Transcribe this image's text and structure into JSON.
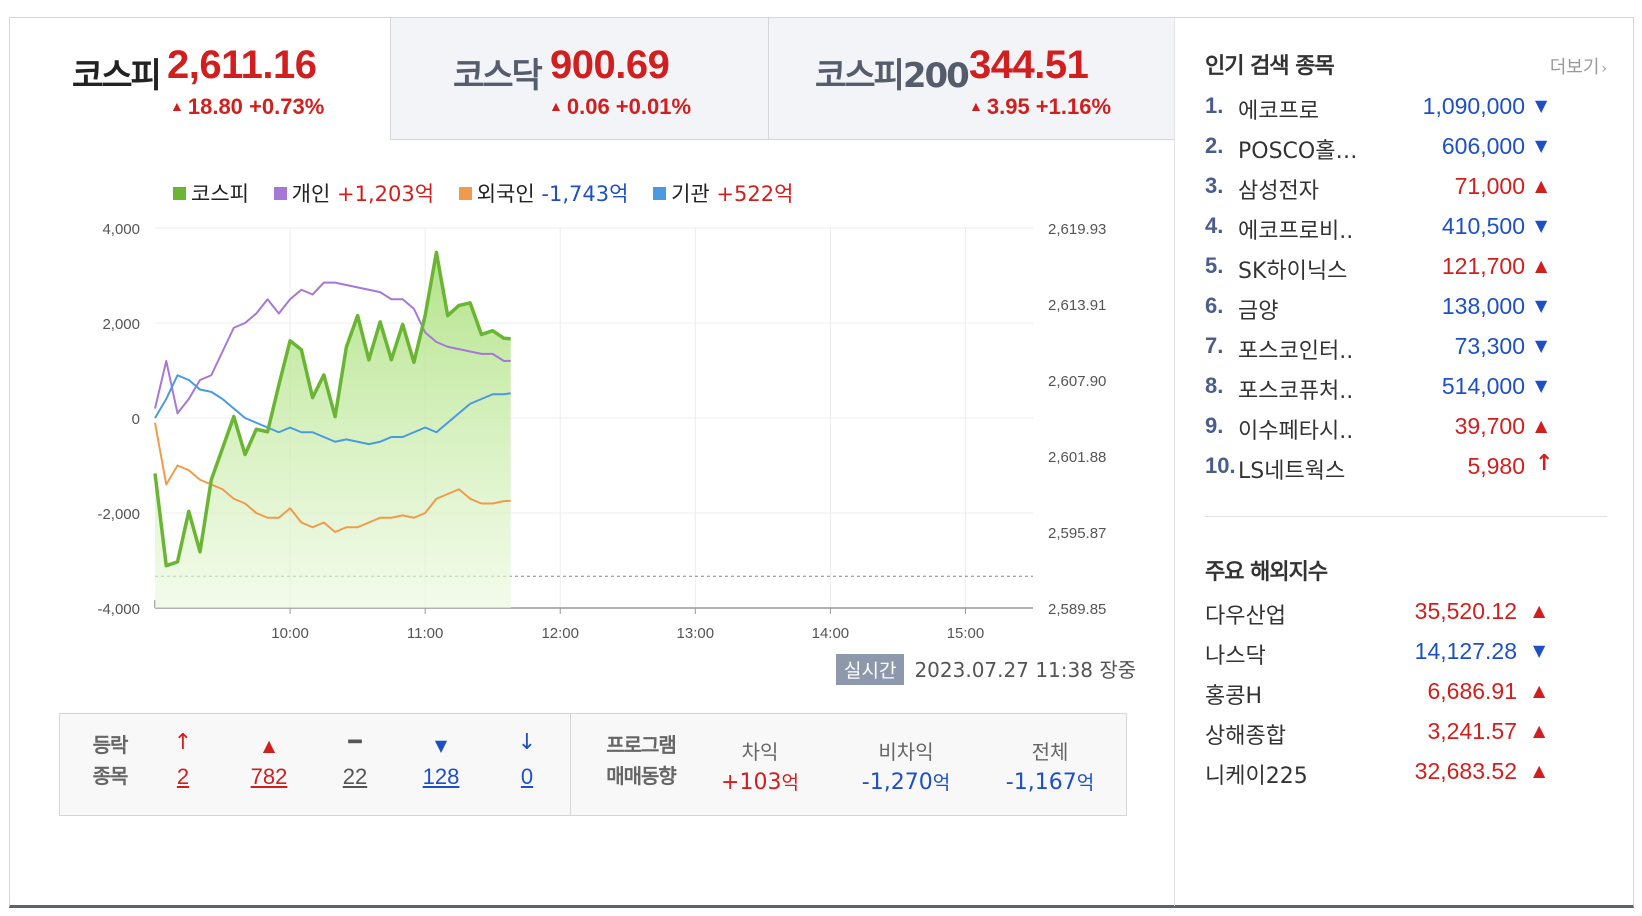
{
  "tabs": [
    {
      "name": "코스피",
      "value": "2,611.16",
      "change": "18.80 +0.73%",
      "direction": "up"
    },
    {
      "name": "코스닥",
      "value": "900.69",
      "change": "0.06 +0.01%",
      "direction": "up"
    },
    {
      "name": "코스피200",
      "value": "344.51",
      "change": "3.95 +1.16%",
      "direction": "up"
    }
  ],
  "legend": [
    {
      "name": "코스피",
      "value": "",
      "color": "#6ab533"
    },
    {
      "name": "개인",
      "value": "+1,203억",
      "color": "#a678d6"
    },
    {
      "name": "외국인",
      "value": "-1,743억",
      "color": "#f09b4c"
    },
    {
      "name": "기관",
      "value": "+522억",
      "color": "#4b9ae0"
    }
  ],
  "realtime": {
    "badge": "실시간",
    "datetime": "2023.07.27 11:38",
    "status": "장중"
  },
  "breadth": {
    "label_top": "등락",
    "label_bottom": "종목",
    "items": [
      {
        "symbol": "↑",
        "count": "2",
        "color": "#d11f1f"
      },
      {
        "symbol": "▲",
        "count": "782",
        "color": "#d11f1f"
      },
      {
        "symbol": "━",
        "count": "22",
        "color": "#555555"
      },
      {
        "symbol": "▼",
        "count": "128",
        "color": "#1e4fc4"
      },
      {
        "symbol": "↓",
        "count": "0",
        "color": "#1e4fc4"
      }
    ]
  },
  "program": {
    "label_top": "프로그램",
    "label_bottom": "매매동향",
    "items": [
      {
        "header": "차익",
        "value": "+103",
        "unit": "억",
        "color": "#d11f1f"
      },
      {
        "header": "비차익",
        "value": "-1,270",
        "unit": "억",
        "color": "#1e4fc4"
      },
      {
        "header": "전체",
        "value": "-1,167",
        "unit": "억",
        "color": "#1e4fc4"
      }
    ]
  },
  "popular": {
    "title": "인기 검색 종목",
    "more": "더보기",
    "items": [
      {
        "rank": "1.",
        "name": "에코프로",
        "price": "1,090,000",
        "dir": "down"
      },
      {
        "rank": "2.",
        "name": "POSCO홀…",
        "price": "606,000",
        "dir": "down"
      },
      {
        "rank": "3.",
        "name": "삼성전자",
        "price": "71,000",
        "dir": "up"
      },
      {
        "rank": "4.",
        "name": "에코프로비..",
        "price": "410,500",
        "dir": "down"
      },
      {
        "rank": "5.",
        "name": "SK하이닉스",
        "price": "121,700",
        "dir": "up"
      },
      {
        "rank": "6.",
        "name": "금양",
        "price": "138,000",
        "dir": "down"
      },
      {
        "rank": "7.",
        "name": "포스코인터..",
        "price": "73,300",
        "dir": "down"
      },
      {
        "rank": "8.",
        "name": "포스코퓨처..",
        "price": "514,000",
        "dir": "down"
      },
      {
        "rank": "9.",
        "name": "이수페타시..",
        "price": "39,700",
        "dir": "up"
      },
      {
        "rank": "10.",
        "name": "LS네트웍스",
        "price": "5,980",
        "dir": "upper"
      }
    ]
  },
  "overseas": {
    "title": "주요 해외지수",
    "items": [
      {
        "name": "다우산업",
        "value": "35,520.12",
        "dir": "up"
      },
      {
        "name": "나스닥",
        "value": "14,127.28",
        "dir": "down"
      },
      {
        "name": "홍콩H",
        "value": "6,686.91",
        "dir": "up"
      },
      {
        "name": "상해종합",
        "value": "3,241.57",
        "dir": "up"
      },
      {
        "name": "니케이225",
        "value": "32,683.52",
        "dir": "up"
      }
    ]
  },
  "chart_data": {
    "type": "line",
    "y_left_ticks": [
      "4,000",
      "2,000",
      "0",
      "-2,000",
      "-4,000"
    ],
    "y_left_range": [
      -4000,
      4000
    ],
    "y_right_ticks": [
      "2,619.93",
      "2,613.91",
      "2,607.90",
      "2,601.88",
      "2,595.87",
      "2,589.85"
    ],
    "y_right_range": [
      2589.85,
      2619.93
    ],
    "x_ticks": [
      "10:00",
      "11:00",
      "12:00",
      "13:00",
      "14:00",
      "15:00"
    ],
    "x_range_minutes": [
      540,
      930
    ],
    "previous_close": 2592.36,
    "series": [
      {
        "name": "코스피",
        "axis": "right",
        "color": "#6ab533",
        "x": [
          540,
          545,
          550,
          555,
          560,
          565,
          570,
          575,
          580,
          585,
          590,
          595,
          600,
          605,
          610,
          615,
          620,
          625,
          630,
          635,
          640,
          645,
          650,
          655,
          660,
          665,
          670,
          675,
          680,
          685,
          690,
          695,
          698
        ],
        "y": [
          2600.5,
          2593.2,
          2593.5,
          2597.5,
          2594.3,
          2600.0,
          2602.5,
          2605.0,
          2602.0,
          2604.0,
          2603.8,
          2607.5,
          2611.0,
          2610.3,
          2606.5,
          2608.3,
          2605.0,
          2610.5,
          2613.0,
          2609.5,
          2612.5,
          2609.5,
          2612.3,
          2609.3,
          2613.0,
          2618.0,
          2613.0,
          2613.8,
          2614.0,
          2611.5,
          2611.8,
          2611.2,
          2611.16
        ]
      },
      {
        "name": "개인",
        "axis": "left",
        "color": "#a678d6",
        "x": [
          540,
          545,
          550,
          555,
          560,
          565,
          570,
          575,
          580,
          585,
          590,
          595,
          600,
          605,
          610,
          615,
          620,
          625,
          630,
          635,
          640,
          645,
          650,
          655,
          660,
          665,
          670,
          675,
          680,
          685,
          690,
          695,
          698
        ],
        "y": [
          200,
          1200,
          100,
          400,
          800,
          900,
          1400,
          1900,
          2000,
          2200,
          2500,
          2200,
          2500,
          2700,
          2600,
          2850,
          2850,
          2800,
          2750,
          2700,
          2650,
          2500,
          2500,
          2300,
          1800,
          1600,
          1500,
          1450,
          1400,
          1350,
          1350,
          1200,
          1203
        ]
      },
      {
        "name": "외국인",
        "axis": "left",
        "color": "#f09b4c",
        "x": [
          540,
          545,
          550,
          555,
          560,
          565,
          570,
          575,
          580,
          585,
          590,
          595,
          600,
          605,
          610,
          615,
          620,
          625,
          630,
          635,
          640,
          645,
          650,
          655,
          660,
          665,
          670,
          675,
          680,
          685,
          690,
          695,
          698
        ],
        "y": [
          -100,
          -1400,
          -1000,
          -1100,
          -1300,
          -1400,
          -1500,
          -1700,
          -1800,
          -2000,
          -2100,
          -2100,
          -1900,
          -2200,
          -2300,
          -2200,
          -2400,
          -2300,
          -2300,
          -2200,
          -2100,
          -2100,
          -2050,
          -2100,
          -2000,
          -1700,
          -1600,
          -1500,
          -1700,
          -1800,
          -1800,
          -1750,
          -1743
        ]
      },
      {
        "name": "기관",
        "axis": "left",
        "color": "#4b9ae0",
        "x": [
          540,
          545,
          550,
          555,
          560,
          565,
          570,
          575,
          580,
          585,
          590,
          595,
          600,
          605,
          610,
          615,
          620,
          625,
          630,
          635,
          640,
          645,
          650,
          655,
          660,
          665,
          670,
          675,
          680,
          685,
          690,
          695,
          698
        ],
        "y": [
          0,
          400,
          900,
          800,
          600,
          550,
          400,
          200,
          0,
          -100,
          -200,
          -300,
          -200,
          -300,
          -300,
          -400,
          -500,
          -450,
          -500,
          -550,
          -500,
          -400,
          -400,
          -300,
          -200,
          -300,
          -100,
          100,
          300,
          400,
          500,
          500,
          522
        ]
      }
    ]
  }
}
